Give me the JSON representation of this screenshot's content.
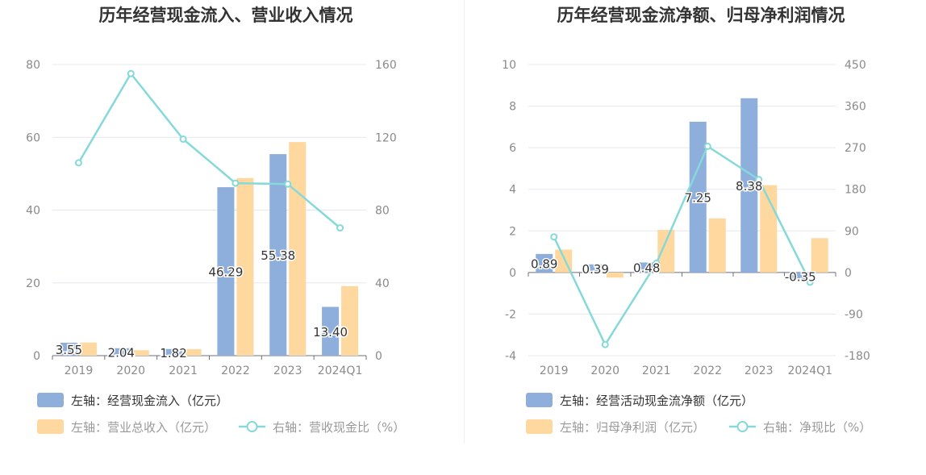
{
  "chart_data": [
    {
      "type": "bar",
      "title": "历年经营现金流入、营业收入情况",
      "categories": [
        "2019",
        "2020",
        "2021",
        "2022",
        "2023",
        "2024Q1"
      ],
      "y_left": {
        "ticks": [
          "0",
          "20",
          "40",
          "60",
          "80"
        ],
        "lim": [
          0,
          80
        ]
      },
      "y_right": {
        "ticks": [
          "0",
          "40",
          "80",
          "120",
          "160"
        ],
        "lim": [
          0,
          160
        ]
      },
      "series": [
        {
          "name": "左轴：经营现金流入（亿元）",
          "type": "bar",
          "axis": "left",
          "color": "#8eaedc",
          "values": [
            3.55,
            2.04,
            1.82,
            46.29,
            55.38,
            13.4
          ],
          "labels": [
            "3.55",
            "2.04",
            "1.82",
            "46.29",
            "55.38",
            "13.40"
          ]
        },
        {
          "name": "左轴：营业总收入（亿元）",
          "type": "bar",
          "axis": "left",
          "color": "#fed89e",
          "values": [
            3.6,
            1.5,
            1.8,
            48.8,
            58.7,
            19.1
          ]
        },
        {
          "name": "右轴：营收现金比（%）",
          "type": "line",
          "axis": "right",
          "color": "#86d9d9",
          "values": [
            106,
            155,
            119,
            94.8,
            94.3,
            70.2
          ]
        }
      ]
    },
    {
      "type": "bar",
      "title": "历年经营现金流净额、归母净利润情况",
      "categories": [
        "2019",
        "2020",
        "2021",
        "2022",
        "2023",
        "2024Q1"
      ],
      "y_left": {
        "ticks": [
          "-4",
          "-2",
          "0",
          "2",
          "4",
          "6",
          "8",
          "10"
        ],
        "lim": [
          -4,
          10
        ]
      },
      "y_right": {
        "ticks": [
          "-180",
          "-90",
          "0",
          "90",
          "180",
          "270",
          "360",
          "450"
        ],
        "lim": [
          -180,
          450
        ]
      },
      "series": [
        {
          "name": "左轴：经营活动现金流净额（亿元）",
          "type": "bar",
          "axis": "left",
          "color": "#8eaedc",
          "values": [
            0.89,
            0.39,
            0.48,
            7.25,
            8.38,
            -0.35
          ],
          "labels": [
            "0.89",
            "0.39",
            "0.48",
            "7.25",
            "8.38",
            "-0.35"
          ]
        },
        {
          "name": "左轴：归母净利润（亿元）",
          "type": "bar",
          "axis": "left",
          "color": "#fed89e",
          "values": [
            1.1,
            -0.25,
            2.05,
            2.6,
            4.2,
            1.65
          ]
        },
        {
          "name": "右轴：净现比（%）",
          "type": "line",
          "axis": "right",
          "color": "#86d9d9",
          "values": [
            77,
            -156,
            20,
            273,
            201,
            -21
          ]
        }
      ]
    }
  ]
}
